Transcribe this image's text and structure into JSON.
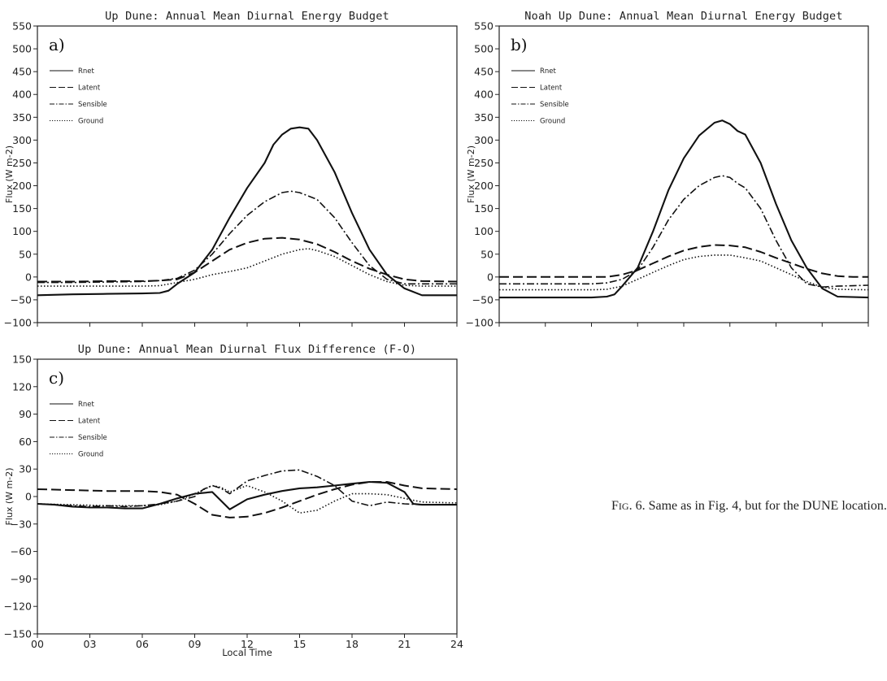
{
  "caption": {
    "prefix": "F",
    "smallcaps": "IG",
    "text": ". 6. Same as in Fig. 4, but for the DUNE location."
  },
  "chart_data": [
    {
      "panel": "a)",
      "type": "line",
      "title": "Up Dune:  Annual Mean Diurnal Energy Budget",
      "ylabel": "Flux (W m-2)",
      "xlabel": "",
      "xlim": [
        0,
        24
      ],
      "ylim": [
        -100,
        550
      ],
      "yticks": [
        -100,
        -50,
        0,
        50,
        100,
        150,
        200,
        250,
        300,
        350,
        400,
        450,
        500,
        550
      ],
      "xticks": [
        0,
        3,
        6,
        9,
        12,
        15,
        18,
        21,
        24
      ],
      "xticklabels_shown": false,
      "series": [
        {
          "name": "Rnet",
          "style": "solid",
          "x": [
            0,
            2,
            4,
            6,
            7,
            7.5,
            8,
            9,
            10,
            11,
            12,
            13,
            13.5,
            14,
            14.5,
            15,
            15.5,
            16,
            17,
            18,
            19,
            20,
            21,
            22,
            24
          ],
          "y": [
            -40,
            -38,
            -37,
            -36,
            -35,
            -30,
            -15,
            10,
            60,
            130,
            195,
            250,
            290,
            312,
            325,
            328,
            325,
            300,
            230,
            140,
            60,
            5,
            -25,
            -40,
            -40
          ]
        },
        {
          "name": "Latent",
          "style": "dash",
          "x": [
            0,
            2,
            4,
            6,
            7,
            8,
            9,
            10,
            11,
            12,
            13,
            14,
            15,
            16,
            17,
            18,
            19,
            20,
            21,
            22,
            24
          ],
          "y": [
            -10,
            -10,
            -9,
            -9,
            -8,
            -5,
            10,
            35,
            60,
            75,
            84,
            86,
            82,
            72,
            55,
            35,
            18,
            5,
            -5,
            -9,
            -10
          ]
        },
        {
          "name": "Sensible",
          "style": "dashdot",
          "x": [
            0,
            2,
            4,
            6,
            7,
            8,
            9,
            10,
            11,
            12,
            13,
            14,
            14.5,
            15,
            16,
            17,
            18,
            19,
            20,
            21,
            22,
            24
          ],
          "y": [
            -12,
            -12,
            -11,
            -10,
            -8,
            -3,
            15,
            50,
            95,
            135,
            165,
            185,
            188,
            185,
            170,
            130,
            75,
            25,
            -5,
            -15,
            -15,
            -15
          ]
        },
        {
          "name": "Ground",
          "style": "dot",
          "x": [
            0,
            2,
            4,
            6,
            7,
            8,
            9,
            10,
            11,
            12,
            13,
            14,
            15,
            15.5,
            16,
            17,
            18,
            19,
            20,
            21,
            22,
            24
          ],
          "y": [
            -20,
            -20,
            -20,
            -20,
            -19,
            -12,
            -5,
            5,
            12,
            20,
            35,
            50,
            60,
            62,
            58,
            45,
            25,
            5,
            -10,
            -18,
            -20,
            -20
          ]
        }
      ]
    },
    {
      "panel": "b)",
      "type": "line",
      "title": "Noah Up Dune:  Annual Mean Diurnal Energy Budget",
      "ylabel": "Flux (W m-2)",
      "xlabel": "",
      "xlim": [
        0,
        24
      ],
      "ylim": [
        -100,
        550
      ],
      "yticks": [
        -100,
        -50,
        0,
        50,
        100,
        150,
        200,
        250,
        300,
        350,
        400,
        450,
        500,
        550
      ],
      "xticks": [
        0,
        3,
        6,
        9,
        12,
        15,
        18,
        21,
        24
      ],
      "xticklabels_shown": false,
      "series": [
        {
          "name": "Rnet",
          "style": "solid",
          "x": [
            0,
            2,
            4,
            6,
            7,
            7.5,
            8,
            9,
            10,
            11,
            12,
            13,
            14,
            14.5,
            15,
            15.5,
            16,
            17,
            18,
            19,
            20,
            21,
            22,
            24
          ],
          "y": [
            -45,
            -45,
            -45,
            -45,
            -43,
            -38,
            -20,
            20,
            100,
            190,
            260,
            310,
            338,
            343,
            335,
            320,
            312,
            250,
            160,
            80,
            20,
            -25,
            -43,
            -45
          ]
        },
        {
          "name": "Latent",
          "style": "dash",
          "x": [
            0,
            2,
            4,
            6,
            7,
            8,
            9,
            10,
            11,
            12,
            13,
            14,
            15,
            16,
            17,
            18,
            19,
            20,
            21,
            22,
            23,
            24
          ],
          "y": [
            0,
            0,
            0,
            0,
            0,
            5,
            15,
            30,
            45,
            58,
            66,
            70,
            69,
            65,
            55,
            42,
            30,
            18,
            8,
            2,
            0,
            0
          ]
        },
        {
          "name": "Sensible",
          "style": "dashdot",
          "x": [
            0,
            2,
            4,
            6,
            7,
            8,
            9,
            10,
            11,
            12,
            13,
            14,
            14.5,
            15,
            15.5,
            16,
            17,
            18,
            19,
            20,
            21,
            22,
            24
          ],
          "y": [
            -15,
            -15,
            -15,
            -15,
            -13,
            -5,
            15,
            65,
            125,
            170,
            200,
            218,
            222,
            218,
            205,
            195,
            150,
            80,
            20,
            -15,
            -22,
            -20,
            -18
          ]
        },
        {
          "name": "Ground",
          "style": "dot",
          "x": [
            0,
            2,
            4,
            6,
            7,
            8,
            9,
            10,
            11,
            12,
            13,
            14,
            15,
            16,
            17,
            18,
            19,
            20,
            21,
            22,
            24
          ],
          "y": [
            -28,
            -28,
            -28,
            -28,
            -27,
            -20,
            -5,
            10,
            25,
            38,
            45,
            48,
            48,
            42,
            35,
            20,
            5,
            -10,
            -22,
            -27,
            -28
          ]
        }
      ]
    },
    {
      "panel": "c)",
      "type": "line",
      "title": "Up Dune:  Annual Mean Diurnal Flux Difference (F-O)",
      "ylabel": "Flux (W m-2)",
      "xlabel": "Local Time",
      "xlim": [
        0,
        24
      ],
      "ylim": [
        -150,
        150
      ],
      "yticks": [
        -150,
        -120,
        -90,
        -60,
        -30,
        0,
        30,
        60,
        90,
        120,
        150
      ],
      "xticks": [
        0,
        3,
        6,
        9,
        12,
        15,
        18,
        21,
        24
      ],
      "xticklabels": [
        "00",
        "03",
        "06",
        "09",
        "12",
        "15",
        "18",
        "21",
        "24"
      ],
      "xticklabels_shown": true,
      "series": [
        {
          "name": "Rnet",
          "style": "solid",
          "x": [
            0,
            1,
            2,
            3,
            4,
            5,
            6,
            7,
            8,
            9,
            10,
            11,
            12,
            13,
            14,
            15,
            16,
            17,
            18,
            19,
            20,
            21,
            21.5,
            22,
            24
          ],
          "y": [
            -8,
            -9,
            -11,
            -12,
            -12,
            -13,
            -13,
            -8,
            -2,
            3,
            5,
            -14,
            -3,
            2,
            6,
            9,
            10,
            12,
            14,
            16,
            15,
            5,
            -8,
            -9,
            -9
          ]
        },
        {
          "name": "Latent",
          "style": "dash",
          "x": [
            0,
            2,
            4,
            6,
            7,
            8,
            9,
            10,
            11,
            12,
            13,
            14,
            15,
            16,
            17,
            18,
            19,
            20,
            21,
            22,
            24
          ],
          "y": [
            8,
            7,
            6,
            6,
            5,
            2,
            -8,
            -20,
            -23,
            -22,
            -18,
            -12,
            -5,
            2,
            8,
            13,
            16,
            16,
            12,
            9,
            8
          ]
        },
        {
          "name": "Sensible",
          "style": "dashdot",
          "x": [
            0,
            2,
            3,
            4,
            5,
            6,
            7,
            8,
            9,
            9.5,
            10,
            10.5,
            11,
            11.5,
            12,
            13,
            14,
            15,
            16,
            17,
            18,
            19,
            20,
            21,
            22,
            24
          ],
          "y": [
            -8,
            -10,
            -11,
            -10,
            -11,
            -10,
            -8,
            -5,
            0,
            8,
            12,
            9,
            3,
            10,
            17,
            23,
            28,
            29,
            22,
            12,
            -5,
            -10,
            -6,
            -8,
            -9,
            -9
          ]
        },
        {
          "name": "Ground",
          "style": "dot",
          "x": [
            0,
            2,
            4,
            6,
            7,
            8,
            9,
            10,
            10.5,
            11,
            12,
            13,
            14,
            15,
            16,
            17,
            18,
            19,
            20,
            21,
            22,
            24
          ],
          "y": [
            -8,
            -9,
            -10,
            -10,
            -9,
            -5,
            3,
            12,
            10,
            5,
            12,
            5,
            -5,
            -18,
            -15,
            -5,
            3,
            3,
            2,
            -2,
            -6,
            -7
          ]
        }
      ]
    }
  ]
}
